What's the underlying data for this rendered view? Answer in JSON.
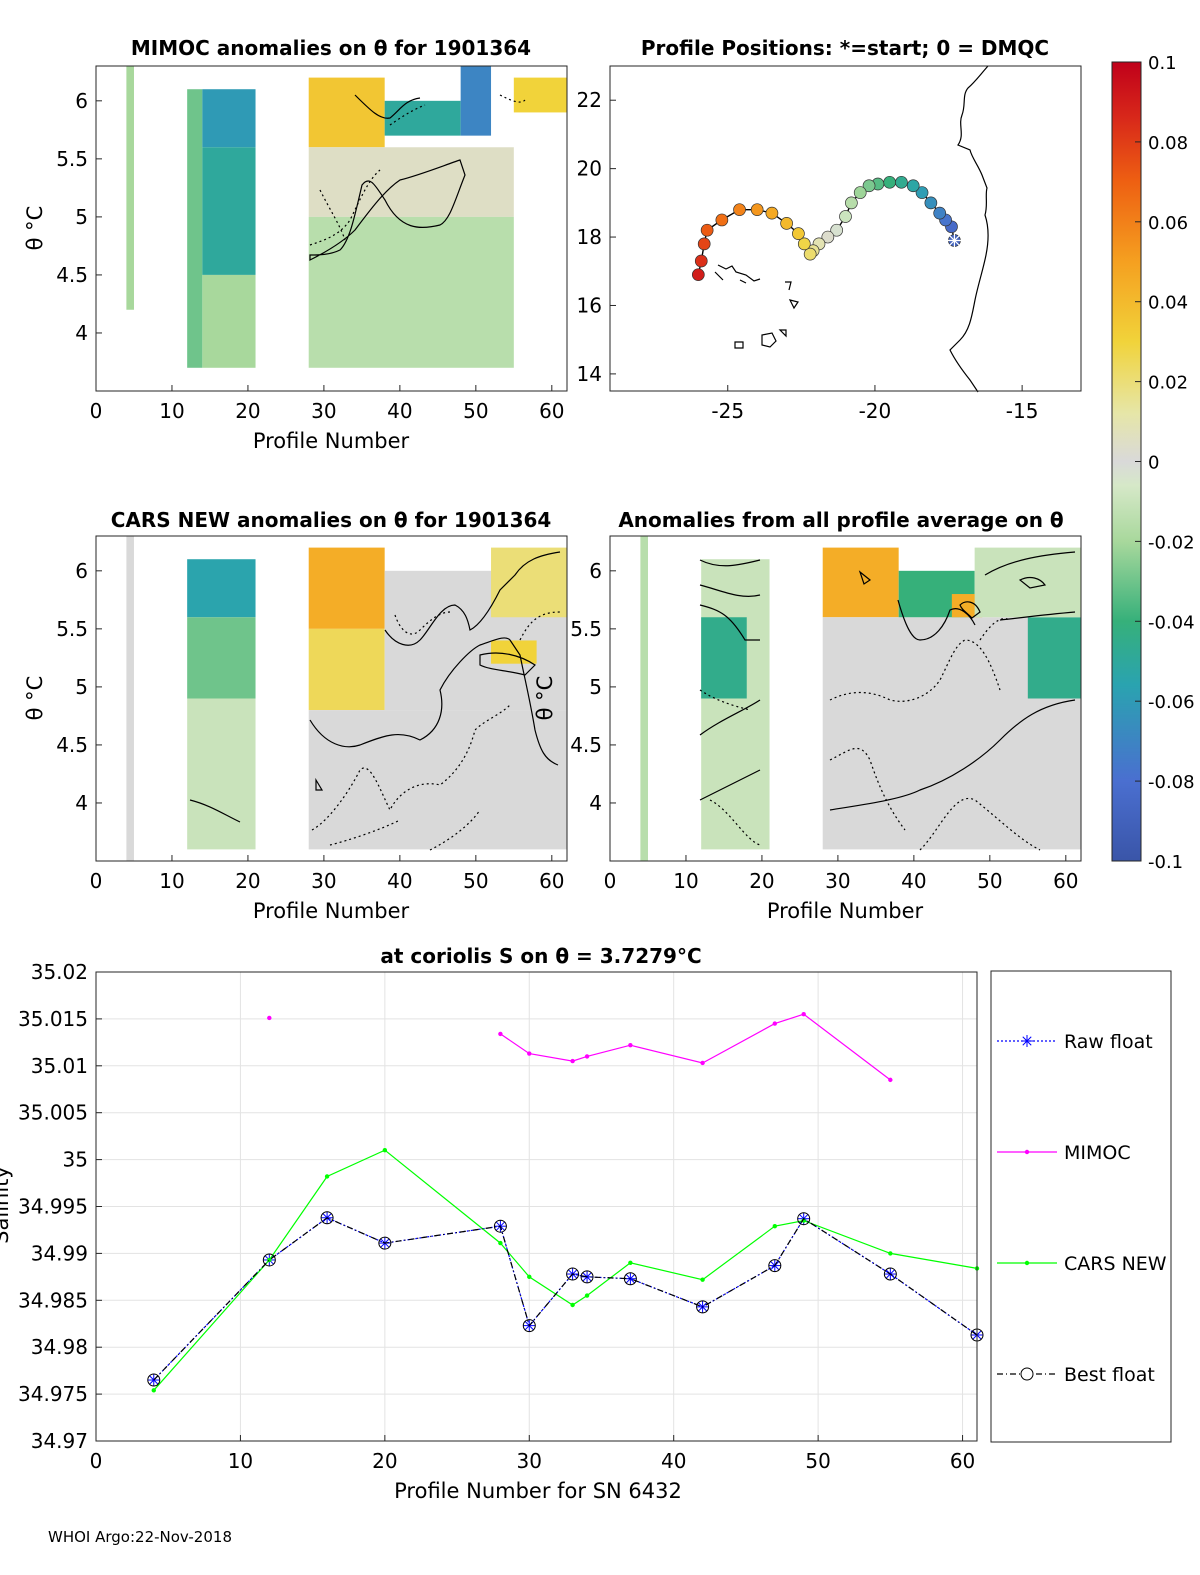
{
  "figure": {
    "footer": "WHOI Argo:22-Nov-2018"
  },
  "colorbar": {
    "ticks": [
      "0.1",
      "0.08",
      "0.06",
      "0.04",
      "0.02",
      "0",
      "-0.02",
      "-0.04",
      "-0.06",
      "-0.08",
      "-0.1"
    ],
    "range": [
      -0.1,
      0.1
    ]
  },
  "chart_data": [
    {
      "id": "mimoc",
      "type": "heatmap",
      "title": "MIMOC anomalies on θ  for 1901364",
      "xlabel": "Profile Number",
      "ylabel": "θ °C",
      "xticks": [
        "0",
        "10",
        "20",
        "30",
        "40",
        "50",
        "60"
      ],
      "yticks": [
        "6",
        "5.5",
        "5",
        "4.5",
        "4"
      ],
      "xlim": [
        0,
        62
      ],
      "ylim": [
        3.5,
        6.3
      ],
      "regions": [
        {
          "x": [
            4,
            5
          ],
          "y": [
            4.2,
            6.3
          ],
          "v": -0.02
        },
        {
          "x": [
            12,
            14
          ],
          "y": [
            3.7,
            6.1
          ],
          "v": -0.03
        },
        {
          "x": [
            14,
            21
          ],
          "y": [
            5.6,
            6.1
          ],
          "v": -0.06
        },
        {
          "x": [
            14,
            21
          ],
          "y": [
            4.5,
            5.6
          ],
          "v": -0.05
        },
        {
          "x": [
            14,
            21
          ],
          "y": [
            3.7,
            4.5
          ],
          "v": -0.02
        },
        {
          "x": [
            28,
            38
          ],
          "y": [
            5.6,
            6.2
          ],
          "v": 0.035
        },
        {
          "x": [
            28,
            55
          ],
          "y": [
            5.0,
            5.6
          ],
          "v": 0.005
        },
        {
          "x": [
            28,
            55
          ],
          "y": [
            3.7,
            5.0
          ],
          "v": -0.015
        },
        {
          "x": [
            38,
            48
          ],
          "y": [
            5.7,
            6.0
          ],
          "v": -0.05
        },
        {
          "x": [
            48,
            52
          ],
          "y": [
            5.7,
            6.3
          ],
          "v": -0.07
        },
        {
          "x": [
            55,
            62
          ],
          "y": [
            5.9,
            6.2
          ],
          "v": 0.03
        }
      ]
    },
    {
      "id": "positions",
      "type": "scatter",
      "title": "Profile Positions: *=start; 0 = DMQC",
      "xticks": [
        "-25",
        "-20",
        "-15"
      ],
      "yticks": [
        "22",
        "20",
        "18",
        "16",
        "14"
      ],
      "xlim": [
        -29,
        -13
      ],
      "ylim": [
        13.5,
        23
      ],
      "lon": [
        -17.3,
        -17.4,
        -17.6,
        -17.8,
        -18.1,
        -18.4,
        -18.7,
        -19.1,
        -19.5,
        -19.9,
        -20.2,
        -20.5,
        -20.8,
        -21.0,
        -21.3,
        -21.6,
        -21.9,
        -22.1,
        -22.2,
        -22.4,
        -22.6,
        -23.0,
        -23.5,
        -24.0,
        -24.6,
        -25.2,
        -25.7,
        -25.8,
        -25.9,
        -26.0
      ],
      "lat": [
        17.9,
        18.3,
        18.5,
        18.7,
        19.0,
        19.3,
        19.5,
        19.6,
        19.6,
        19.55,
        19.5,
        19.3,
        19.0,
        18.6,
        18.2,
        18.0,
        17.8,
        17.6,
        17.5,
        17.8,
        18.1,
        18.4,
        18.7,
        18.8,
        18.8,
        18.5,
        18.2,
        17.8,
        17.3,
        16.9
      ]
    },
    {
      "id": "cars",
      "type": "heatmap",
      "title": "CARS NEW anomalies on θ for 1901364",
      "xlabel": "Profile Number",
      "ylabel": "θ °C",
      "xticks": [
        "0",
        "10",
        "20",
        "30",
        "40",
        "50",
        "60"
      ],
      "yticks": [
        "6",
        "5.5",
        "5",
        "4.5",
        "4"
      ],
      "xlim": [
        0,
        62
      ],
      "ylim": [
        3.5,
        6.3
      ],
      "regions": [
        {
          "x": [
            4,
            5
          ],
          "y": [
            3.5,
            6.3
          ],
          "v": 0.0
        },
        {
          "x": [
            12,
            21
          ],
          "y": [
            5.6,
            6.1
          ],
          "v": -0.055
        },
        {
          "x": [
            12,
            21
          ],
          "y": [
            4.9,
            5.6
          ],
          "v": -0.03
        },
        {
          "x": [
            12,
            21
          ],
          "y": [
            3.6,
            4.9
          ],
          "v": -0.01
        },
        {
          "x": [
            28,
            38
          ],
          "y": [
            5.5,
            6.2
          ],
          "v": 0.045
        },
        {
          "x": [
            28,
            38
          ],
          "y": [
            4.8,
            5.5
          ],
          "v": 0.025
        },
        {
          "x": [
            28,
            62
          ],
          "y": [
            3.6,
            4.8
          ],
          "v": 0.0
        },
        {
          "x": [
            38,
            62
          ],
          "y": [
            4.8,
            6.0
          ],
          "v": 0.0
        },
        {
          "x": [
            52,
            58
          ],
          "y": [
            5.2,
            5.4
          ],
          "v": 0.03
        },
        {
          "x": [
            52,
            62
          ],
          "y": [
            5.6,
            6.2
          ],
          "v": 0.02
        }
      ]
    },
    {
      "id": "anom",
      "type": "heatmap",
      "title": "Anomalies from all profile average on θ",
      "xlabel": "Profile Number",
      "ylabel": "θ °C",
      "xticks": [
        "0",
        "10",
        "20",
        "30",
        "40",
        "50",
        "60"
      ],
      "yticks": [
        "6",
        "5.5",
        "5",
        "4.5",
        "4"
      ],
      "xlim": [
        0,
        62
      ],
      "ylim": [
        3.5,
        6.3
      ],
      "regions": [
        {
          "x": [
            4,
            5
          ],
          "y": [
            3.5,
            6.3
          ],
          "v": -0.015
        },
        {
          "x": [
            12,
            21
          ],
          "y": [
            3.6,
            6.1
          ],
          "v": -0.01
        },
        {
          "x": [
            12,
            18
          ],
          "y": [
            4.9,
            5.6
          ],
          "v": -0.045
        },
        {
          "x": [
            28,
            38
          ],
          "y": [
            5.6,
            6.2
          ],
          "v": 0.045
        },
        {
          "x": [
            28,
            62
          ],
          "y": [
            3.6,
            5.6
          ],
          "v": 0.0
        },
        {
          "x": [
            38,
            48
          ],
          "y": [
            5.6,
            6.0
          ],
          "v": -0.04
        },
        {
          "x": [
            45,
            49
          ],
          "y": [
            5.6,
            5.8
          ],
          "v": 0.045
        },
        {
          "x": [
            55,
            62
          ],
          "y": [
            4.9,
            5.6
          ],
          "v": -0.045
        },
        {
          "x": [
            48,
            62
          ],
          "y": [
            5.6,
            6.2
          ],
          "v": -0.01
        }
      ]
    },
    {
      "id": "salinity",
      "type": "line",
      "title": "at coriolis S on θ = 3.7279°C",
      "xlabel": "Profile Number for SN 6432",
      "ylabel": "Salinity",
      "xticks": [
        "0",
        "10",
        "20",
        "30",
        "40",
        "50",
        "60"
      ],
      "yticks": [
        "35.02",
        "35.015",
        "35.01",
        "35.005",
        "35",
        "34.995",
        "34.99",
        "34.985",
        "34.98",
        "34.975",
        "34.97"
      ],
      "xlim": [
        0,
        61
      ],
      "ylim": [
        34.97,
        35.02
      ],
      "series": [
        {
          "name": "Raw float",
          "color": "#0000ff",
          "x": [
            4,
            12,
            16,
            20,
            28,
            30,
            33,
            34,
            37,
            42,
            47,
            49,
            55,
            61
          ],
          "y": [
            34.9765,
            34.9893,
            34.9938,
            34.9911,
            34.9929,
            34.9823,
            34.9878,
            34.9875,
            34.9873,
            34.9843,
            34.9887,
            34.9937,
            34.9878,
            34.9813
          ]
        },
        {
          "name": "MIMOC",
          "color": "#ff00ff",
          "x": [
            12,
            28,
            30,
            33,
            34,
            37,
            42,
            47,
            49,
            55
          ],
          "y": [
            35.0151,
            35.0134,
            35.0113,
            35.0105,
            35.011,
            35.0122,
            35.0103,
            35.0145,
            35.0155,
            35.0085
          ]
        },
        {
          "name": "CARS NEW",
          "color": "#00ff00",
          "x": [
            4,
            12,
            16,
            20,
            28,
            30,
            33,
            34,
            37,
            42,
            47,
            49,
            55,
            61
          ],
          "y": [
            34.9754,
            34.9893,
            34.9982,
            35.001,
            34.9911,
            34.9875,
            34.9845,
            34.9855,
            34.989,
            34.9872,
            34.9929,
            34.9935,
            34.99,
            34.9884
          ]
        },
        {
          "name": "Best float",
          "color": "#000000",
          "x": [
            4,
            12,
            16,
            20,
            28,
            30,
            33,
            34,
            37,
            42,
            47,
            49,
            55,
            61
          ],
          "y": [
            34.9765,
            34.9893,
            34.9938,
            34.9911,
            34.9929,
            34.9823,
            34.9878,
            34.9875,
            34.9873,
            34.9843,
            34.9887,
            34.9937,
            34.9878,
            34.9813
          ]
        }
      ]
    }
  ]
}
